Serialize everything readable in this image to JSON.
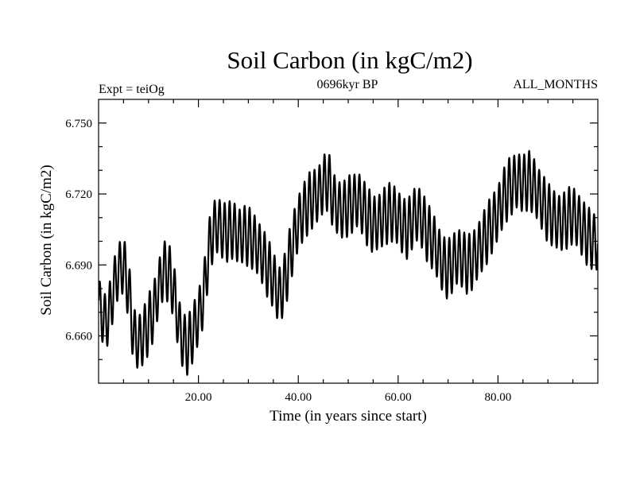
{
  "chart_data": {
    "type": "line",
    "title": "Soil Carbon (in kgC/m2)",
    "subtitle_left": "Expt = teiOg",
    "subtitle_center": "0696kyr BP",
    "subtitle_right": "ALL_MONTHS",
    "xlabel": "Time (in years since start)",
    "ylabel": "Soil Carbon (in kgC/m2)",
    "xlim": [
      0,
      100
    ],
    "ylim": [
      6.64,
      6.76
    ],
    "x_ticks": [
      20,
      40,
      60,
      80
    ],
    "x_tick_labels": [
      "20.00",
      "40.00",
      "60.00",
      "80.00"
    ],
    "y_ticks": [
      6.66,
      6.69,
      6.72,
      6.75
    ],
    "y_tick_labels": [
      "6.660",
      "6.690",
      "6.720",
      "6.750"
    ],
    "grid": false,
    "line_color": "#000000",
    "series": [
      {
        "x": [
          0.0,
          1.0,
          2.0,
          3.0,
          4.0,
          5.0,
          6.0,
          7.0,
          8.0,
          9.0,
          10.0,
          11.0,
          12.0,
          13.0,
          14.0,
          15.0,
          16.0,
          17.0,
          18.0,
          19.0,
          20.0,
          21.0,
          22.0,
          23.0,
          24.0,
          25.0,
          26.0,
          27.0,
          28.0,
          29.0,
          30.0,
          31.0,
          32.0,
          33.0,
          34.0,
          35.0,
          36.0,
          37.0,
          38.0,
          39.0,
          40.0,
          41.0,
          42.0,
          43.0,
          44.0,
          45.0,
          46.0,
          47.0,
          48.0,
          49.0,
          50.0,
          51.0,
          52.0,
          53.0,
          54.0,
          55.0,
          56.0,
          57.0,
          58.0,
          59.0,
          60.0,
          61.0,
          62.0,
          63.0,
          64.0,
          65.0,
          66.0,
          67.0,
          68.0,
          69.0,
          70.0,
          71.0,
          72.0,
          73.0,
          74.0,
          75.0,
          76.0,
          77.0,
          78.0,
          79.0,
          80.0,
          81.0,
          82.0,
          83.0,
          84.0,
          85.0,
          86.0,
          87.0,
          88.0,
          89.0,
          90.0,
          91.0,
          92.0,
          93.0,
          94.0,
          95.0,
          96.0,
          97.0,
          98.0,
          99.0,
          100.0
        ],
        "y": [
          6.675,
          6.666,
          6.668,
          6.68,
          6.688,
          6.69,
          6.68,
          6.66,
          6.657,
          6.66,
          6.665,
          6.67,
          6.68,
          6.688,
          6.687,
          6.68,
          6.665,
          6.657,
          6.656,
          6.662,
          6.668,
          6.676,
          6.695,
          6.705,
          6.707,
          6.704,
          6.704,
          6.705,
          6.702,
          6.703,
          6.702,
          6.7,
          6.697,
          6.693,
          6.688,
          6.684,
          6.677,
          6.68,
          6.69,
          6.7,
          6.708,
          6.712,
          6.716,
          6.718,
          6.72,
          6.724,
          6.726,
          6.717,
          6.714,
          6.713,
          6.715,
          6.716,
          6.718,
          6.714,
          6.71,
          6.707,
          6.708,
          6.71,
          6.712,
          6.712,
          6.71,
          6.706,
          6.705,
          6.71,
          6.712,
          6.708,
          6.703,
          6.7,
          6.695,
          6.69,
          6.688,
          6.691,
          6.694,
          6.692,
          6.69,
          6.692,
          6.696,
          6.7,
          6.704,
          6.708,
          6.712,
          6.718,
          6.722,
          6.724,
          6.726,
          6.724,
          6.726,
          6.724,
          6.72,
          6.716,
          6.712,
          6.71,
          6.708,
          6.708,
          6.71,
          6.711,
          6.709,
          6.705,
          6.702,
          6.7,
          6.699
        ],
        "amplitude": [
          0.01,
          0.011,
          0.012,
          0.012,
          0.011,
          0.012,
          0.013,
          0.012,
          0.011,
          0.012,
          0.013,
          0.012,
          0.011,
          0.012,
          0.013,
          0.012,
          0.011,
          0.012,
          0.013,
          0.012,
          0.011,
          0.012,
          0.013,
          0.012,
          0.011,
          0.012,
          0.013,
          0.012,
          0.011,
          0.012,
          0.013,
          0.012,
          0.011,
          0.012,
          0.013,
          0.012,
          0.011,
          0.012,
          0.013,
          0.012,
          0.011,
          0.012,
          0.013,
          0.012,
          0.011,
          0.012,
          0.013,
          0.012,
          0.011,
          0.012,
          0.013,
          0.012,
          0.011,
          0.012,
          0.013,
          0.012,
          0.011,
          0.012,
          0.013,
          0.012,
          0.011,
          0.012,
          0.013,
          0.012,
          0.011,
          0.012,
          0.013,
          0.012,
          0.011,
          0.012,
          0.013,
          0.012,
          0.011,
          0.012,
          0.013,
          0.012,
          0.011,
          0.012,
          0.013,
          0.012,
          0.011,
          0.012,
          0.013,
          0.012,
          0.011,
          0.012,
          0.013,
          0.012,
          0.011,
          0.012,
          0.013,
          0.012,
          0.011,
          0.012,
          0.013,
          0.012,
          0.011,
          0.012,
          0.013,
          0.012,
          0.011
        ]
      }
    ]
  }
}
